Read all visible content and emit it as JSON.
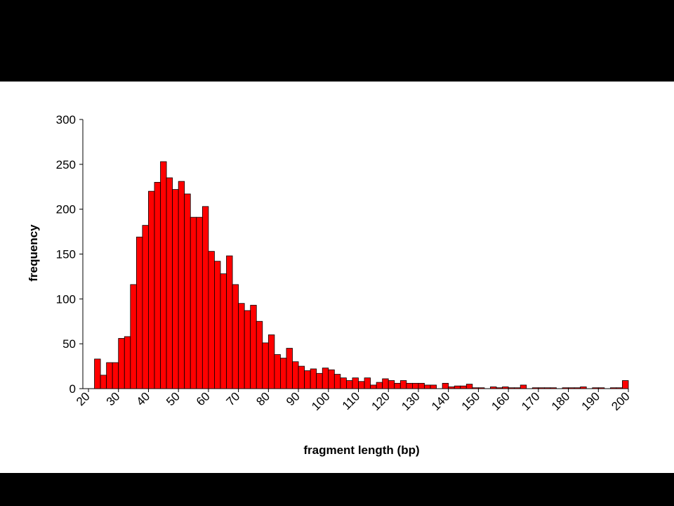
{
  "chart_data": {
    "type": "histogram",
    "x_label": "fragment length (bp)",
    "y_label": "frequency",
    "bins": [
      22,
      24,
      26,
      28,
      30,
      32,
      34,
      36,
      38,
      40,
      42,
      44,
      46,
      48,
      50,
      52,
      54,
      56,
      58,
      60,
      62,
      64,
      66,
      68,
      70,
      72,
      74,
      76,
      78,
      80,
      82,
      84,
      86,
      88,
      90,
      92,
      94,
      96,
      98,
      100,
      102,
      104,
      106,
      108,
      110,
      112,
      114,
      116,
      118,
      120,
      122,
      124,
      126,
      128,
      130,
      132,
      134,
      136,
      138,
      140,
      142,
      144,
      146,
      148,
      150,
      152,
      154,
      156,
      158,
      160,
      162,
      164,
      166,
      168,
      170,
      172,
      174,
      176,
      178,
      180,
      182,
      184,
      186,
      188,
      190,
      192,
      194,
      196,
      198,
      200
    ],
    "values": [
      33,
      15,
      29,
      29,
      56,
      58,
      116,
      169,
      182,
      220,
      230,
      253,
      235,
      222,
      231,
      217,
      191,
      191,
      203,
      153,
      142,
      128,
      148,
      116,
      95,
      87,
      93,
      75,
      51,
      60,
      38,
      34,
      45,
      30,
      25,
      20,
      22,
      17,
      23,
      21,
      16,
      12,
      9,
      12,
      8,
      12,
      4,
      7,
      11,
      9,
      6,
      9,
      6,
      6,
      6,
      4,
      4,
      0,
      6,
      2,
      3,
      3,
      5,
      1,
      1,
      0,
      2,
      1,
      2,
      1,
      1,
      4,
      0,
      1,
      1,
      1,
      1,
      0,
      1,
      1,
      1,
      2,
      0,
      1,
      1,
      0,
      1,
      1,
      9
    ],
    "color": "#ff0000",
    "xlim": [
      20,
      200
    ],
    "xticks": [
      20,
      30,
      40,
      50,
      60,
      70,
      80,
      90,
      100,
      110,
      120,
      130,
      140,
      150,
      160,
      170,
      180,
      190,
      200
    ],
    "ylim": [
      0,
      300
    ],
    "yticks": [
      0,
      50,
      100,
      150,
      200,
      250,
      300
    ]
  }
}
